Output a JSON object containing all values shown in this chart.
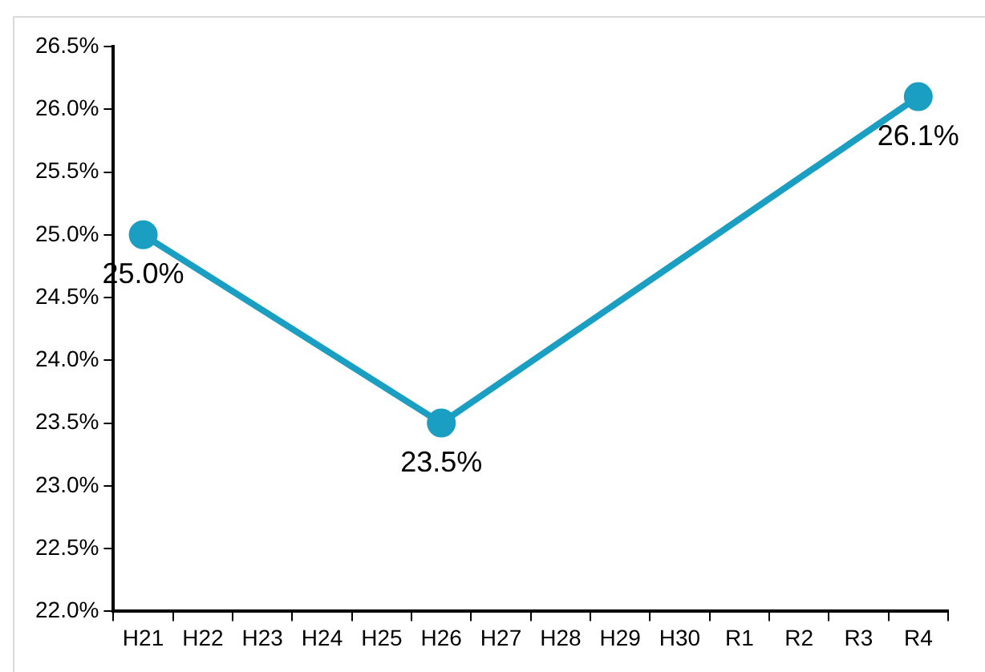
{
  "chart_data": {
    "type": "line",
    "categories": [
      "H21",
      "H22",
      "H23",
      "H24",
      "H25",
      "H26",
      "H27",
      "H28",
      "H29",
      "H30",
      "R1",
      "R2",
      "R3",
      "R4"
    ],
    "series": [
      {
        "color": "#1a9fc2",
        "values": [
          25.0,
          null,
          null,
          null,
          null,
          23.5,
          null,
          null,
          null,
          null,
          null,
          null,
          null,
          26.1
        ],
        "value_labels": [
          "25.0%",
          null,
          null,
          null,
          null,
          "23.5%",
          null,
          null,
          null,
          null,
          null,
          null,
          null,
          "26.1%"
        ]
      }
    ],
    "ylim": [
      22.0,
      26.5
    ],
    "yticks": [
      {
        "value": 22.0,
        "label": "22.0%"
      },
      {
        "value": 22.5,
        "label": "22.5%"
      },
      {
        "value": 23.0,
        "label": "23.0%"
      },
      {
        "value": 23.5,
        "label": "23.5%"
      },
      {
        "value": 24.0,
        "label": "24.0%"
      },
      {
        "value": 24.5,
        "label": "24.5%"
      },
      {
        "value": 25.0,
        "label": "25.0%"
      },
      {
        "value": 25.5,
        "label": "25.5%"
      },
      {
        "value": 26.0,
        "label": "26.0%"
      },
      {
        "value": 26.5,
        "label": "26.5%"
      }
    ],
    "grid": false,
    "legend": false,
    "marker": "circle",
    "line_style": "solid"
  }
}
